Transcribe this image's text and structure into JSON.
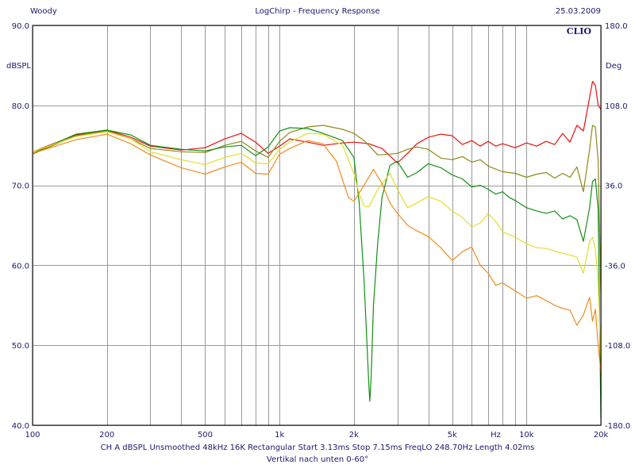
{
  "header": {
    "left": "Woody",
    "center": "LogChirp - Frequency Response",
    "right": "25.03.2009"
  },
  "footer": {
    "line1": "CH A   dBSPL   Unsmoothed   48kHz   16K   Rectangular   Start 3.13ms   Stop 7.15ms   FreqLO 248.70Hz   Length 4.02ms",
    "line2": "Vertikal nach unten 0-60°"
  },
  "chart_data": {
    "type": "line",
    "title": "LogChirp - Frequency Response",
    "brand": "CLIO",
    "ylabel_left": "dBSPL",
    "ylabel_right": "Deg",
    "xscale": "log",
    "xlim": [
      100,
      20000
    ],
    "ylim_left": [
      40,
      90
    ],
    "ylim_right": [
      -180,
      180
    ],
    "x_ticks": [
      {
        "v": 100,
        "label": "100"
      },
      {
        "v": 200,
        "label": "200"
      },
      {
        "v": 500,
        "label": "500"
      },
      {
        "v": 1000,
        "label": "1k"
      },
      {
        "v": 2000,
        "label": "2k"
      },
      {
        "v": 5000,
        "label": "5k"
      },
      {
        "v": 7500,
        "label": "Hz"
      },
      {
        "v": 10000,
        "label": "10k"
      },
      {
        "v": 20000,
        "label": "20k"
      }
    ],
    "y_ticks_left": [
      {
        "v": 40,
        "label": "40.0"
      },
      {
        "v": 50,
        "label": "50.0"
      },
      {
        "v": 60,
        "label": "60.0"
      },
      {
        "v": 70,
        "label": "70.0"
      },
      {
        "v": 80,
        "label": "80.0"
      },
      {
        "v": 90,
        "label": "90.0"
      }
    ],
    "y_ticks_right": [
      {
        "v": -180,
        "label": "-180.0"
      },
      {
        "v": -108,
        "label": "-108.0"
      },
      {
        "v": -36,
        "label": "-36.0"
      },
      {
        "v": 36,
        "label": "36.0"
      },
      {
        "v": 108,
        "label": "108.0"
      },
      {
        "v": 180,
        "label": "180.0"
      }
    ],
    "grid": true,
    "colors": {
      "grid": "#999999",
      "axis": "#000000",
      "text": "#1a1a6e",
      "brand": "#1a1a6e"
    },
    "series": [
      {
        "color": "#e8120c",
        "points": [
          [
            100,
            74.2
          ],
          [
            150,
            76.3
          ],
          [
            200,
            76.9
          ],
          [
            250,
            76.0
          ],
          [
            300,
            74.9
          ],
          [
            400,
            74.4
          ],
          [
            500,
            74.7
          ],
          [
            600,
            75.8
          ],
          [
            700,
            76.5
          ],
          [
            800,
            75.4
          ],
          [
            900,
            74.0
          ],
          [
            1000,
            74.9
          ],
          [
            1100,
            75.8
          ],
          [
            1300,
            75.4
          ],
          [
            1500,
            75.0
          ],
          [
            1800,
            75.3
          ],
          [
            2000,
            75.4
          ],
          [
            2300,
            75.2
          ],
          [
            2600,
            74.6
          ],
          [
            3000,
            72.8
          ],
          [
            3300,
            74.0
          ],
          [
            3600,
            75.2
          ],
          [
            4000,
            76.0
          ],
          [
            4500,
            76.4
          ],
          [
            5000,
            76.2
          ],
          [
            5500,
            75.1
          ],
          [
            6000,
            75.6
          ],
          [
            6500,
            74.9
          ],
          [
            7000,
            75.5
          ],
          [
            7500,
            74.9
          ],
          [
            8000,
            75.2
          ],
          [
            9000,
            74.7
          ],
          [
            10000,
            75.3
          ],
          [
            11000,
            74.9
          ],
          [
            12000,
            75.5
          ],
          [
            13000,
            75.1
          ],
          [
            14000,
            76.5
          ],
          [
            15000,
            75.4
          ],
          [
            16000,
            77.5
          ],
          [
            17000,
            76.8
          ],
          [
            18000,
            81.0
          ],
          [
            18500,
            83.0
          ],
          [
            19000,
            82.5
          ],
          [
            19500,
            80.0
          ],
          [
            20000,
            79.5
          ]
        ]
      },
      {
        "color": "#8a8a1a",
        "points": [
          [
            100,
            73.9
          ],
          [
            150,
            76.2
          ],
          [
            200,
            76.8
          ],
          [
            250,
            75.8
          ],
          [
            300,
            74.6
          ],
          [
            400,
            74.2
          ],
          [
            500,
            74.1
          ],
          [
            600,
            75.0
          ],
          [
            700,
            75.5
          ],
          [
            800,
            74.3
          ],
          [
            900,
            73.5
          ],
          [
            1000,
            75.5
          ],
          [
            1100,
            76.6
          ],
          [
            1300,
            77.3
          ],
          [
            1500,
            77.5
          ],
          [
            1800,
            77.0
          ],
          [
            2000,
            76.5
          ],
          [
            2200,
            75.6
          ],
          [
            2500,
            73.8
          ],
          [
            2800,
            73.9
          ],
          [
            3000,
            74.0
          ],
          [
            3300,
            74.5
          ],
          [
            3600,
            74.8
          ],
          [
            4000,
            74.5
          ],
          [
            4500,
            73.4
          ],
          [
            5000,
            73.2
          ],
          [
            5500,
            73.6
          ],
          [
            6000,
            72.9
          ],
          [
            6500,
            73.2
          ],
          [
            7000,
            72.4
          ],
          [
            8000,
            71.7
          ],
          [
            9000,
            71.5
          ],
          [
            10000,
            71.0
          ],
          [
            11000,
            71.4
          ],
          [
            12000,
            71.6
          ],
          [
            13000,
            70.9
          ],
          [
            14000,
            71.5
          ],
          [
            15000,
            71.0
          ],
          [
            16000,
            72.3
          ],
          [
            17000,
            69.2
          ],
          [
            18000,
            74.5
          ],
          [
            18500,
            77.5
          ],
          [
            19000,
            77.3
          ],
          [
            19500,
            73.0
          ],
          [
            20000,
            56.5
          ]
        ]
      },
      {
        "color": "#138f13",
        "points": [
          [
            100,
            74.0
          ],
          [
            150,
            76.4
          ],
          [
            200,
            76.9
          ],
          [
            250,
            76.3
          ],
          [
            300,
            75.0
          ],
          [
            400,
            74.5
          ],
          [
            500,
            74.3
          ],
          [
            600,
            74.8
          ],
          [
            700,
            75.0
          ],
          [
            800,
            73.7
          ],
          [
            900,
            74.8
          ],
          [
            1000,
            76.8
          ],
          [
            1100,
            77.2
          ],
          [
            1300,
            77.1
          ],
          [
            1500,
            76.5
          ],
          [
            1800,
            75.6
          ],
          [
            2000,
            73.5
          ],
          [
            2100,
            68.0
          ],
          [
            2200,
            58.0
          ],
          [
            2300,
            45.0
          ],
          [
            2320,
            43.0
          ],
          [
            2350,
            46.0
          ],
          [
            2400,
            55.0
          ],
          [
            2500,
            63.0
          ],
          [
            2600,
            68.5
          ],
          [
            2800,
            72.5
          ],
          [
            3000,
            73.0
          ],
          [
            3300,
            71.0
          ],
          [
            3600,
            71.6
          ],
          [
            4000,
            72.7
          ],
          [
            4500,
            72.2
          ],
          [
            5000,
            71.3
          ],
          [
            5500,
            70.8
          ],
          [
            6000,
            69.8
          ],
          [
            6500,
            70.0
          ],
          [
            7000,
            69.5
          ],
          [
            7500,
            68.9
          ],
          [
            8000,
            69.2
          ],
          [
            8500,
            68.5
          ],
          [
            9000,
            68.1
          ],
          [
            10000,
            67.2
          ],
          [
            11000,
            66.8
          ],
          [
            12000,
            66.5
          ],
          [
            13000,
            66.8
          ],
          [
            14000,
            65.8
          ],
          [
            15000,
            66.2
          ],
          [
            16000,
            65.7
          ],
          [
            17000,
            63.0
          ],
          [
            18000,
            67.2
          ],
          [
            18500,
            70.5
          ],
          [
            19000,
            70.8
          ],
          [
            19500,
            67.0
          ],
          [
            20000,
            41.0
          ]
        ]
      },
      {
        "color": "#e2de2c",
        "points": [
          [
            100,
            74.2
          ],
          [
            150,
            76.1
          ],
          [
            200,
            76.7
          ],
          [
            250,
            75.8
          ],
          [
            300,
            74.2
          ],
          [
            400,
            73.2
          ],
          [
            500,
            72.6
          ],
          [
            600,
            73.5
          ],
          [
            700,
            74.0
          ],
          [
            800,
            72.8
          ],
          [
            900,
            72.7
          ],
          [
            1000,
            74.5
          ],
          [
            1100,
            75.4
          ],
          [
            1300,
            76.5
          ],
          [
            1500,
            76.4
          ],
          [
            1800,
            75.0
          ],
          [
            2000,
            71.5
          ],
          [
            2100,
            69.0
          ],
          [
            2200,
            67.4
          ],
          [
            2300,
            67.3
          ],
          [
            2500,
            69.5
          ],
          [
            2800,
            71.5
          ],
          [
            3000,
            69.5
          ],
          [
            3300,
            67.2
          ],
          [
            3600,
            67.8
          ],
          [
            4000,
            68.6
          ],
          [
            4500,
            68.0
          ],
          [
            5000,
            66.8
          ],
          [
            5500,
            66.0
          ],
          [
            6000,
            64.8
          ],
          [
            6500,
            65.3
          ],
          [
            7000,
            66.5
          ],
          [
            7500,
            65.5
          ],
          [
            8000,
            64.2
          ],
          [
            9000,
            63.5
          ],
          [
            10000,
            62.7
          ],
          [
            11000,
            62.2
          ],
          [
            12000,
            62.1
          ],
          [
            13000,
            61.8
          ],
          [
            14000,
            61.5
          ],
          [
            15000,
            61.3
          ],
          [
            16000,
            61.0
          ],
          [
            17000,
            59.0
          ],
          [
            18000,
            63.0
          ],
          [
            18500,
            63.5
          ],
          [
            19000,
            62.0
          ],
          [
            19500,
            58.0
          ],
          [
            20000,
            48.0
          ]
        ]
      },
      {
        "color": "#f08c1c",
        "points": [
          [
            100,
            74.0
          ],
          [
            150,
            75.7
          ],
          [
            200,
            76.4
          ],
          [
            250,
            75.2
          ],
          [
            300,
            73.8
          ],
          [
            400,
            72.2
          ],
          [
            500,
            71.4
          ],
          [
            600,
            72.3
          ],
          [
            700,
            72.9
          ],
          [
            800,
            71.5
          ],
          [
            900,
            71.4
          ],
          [
            1000,
            73.9
          ],
          [
            1100,
            74.6
          ],
          [
            1300,
            75.6
          ],
          [
            1500,
            75.2
          ],
          [
            1700,
            73.0
          ],
          [
            1900,
            68.5
          ],
          [
            2000,
            68.0
          ],
          [
            2200,
            70.0
          ],
          [
            2400,
            72.0
          ],
          [
            2600,
            70.2
          ],
          [
            2800,
            67.8
          ],
          [
            3000,
            66.5
          ],
          [
            3300,
            65.0
          ],
          [
            3600,
            64.3
          ],
          [
            4000,
            63.6
          ],
          [
            4500,
            62.2
          ],
          [
            5000,
            60.6
          ],
          [
            5500,
            61.7
          ],
          [
            6000,
            62.3
          ],
          [
            6500,
            60.0
          ],
          [
            7000,
            59.0
          ],
          [
            7500,
            57.5
          ],
          [
            8000,
            57.8
          ],
          [
            9000,
            56.8
          ],
          [
            10000,
            55.9
          ],
          [
            11000,
            56.2
          ],
          [
            12000,
            55.6
          ],
          [
            13000,
            55.0
          ],
          [
            14000,
            54.6
          ],
          [
            15000,
            54.4
          ],
          [
            16000,
            52.5
          ],
          [
            17000,
            53.8
          ],
          [
            18000,
            56.0
          ],
          [
            18500,
            53.0
          ],
          [
            19000,
            54.5
          ],
          [
            19500,
            50.0
          ],
          [
            20000,
            46.5
          ]
        ]
      }
    ]
  }
}
